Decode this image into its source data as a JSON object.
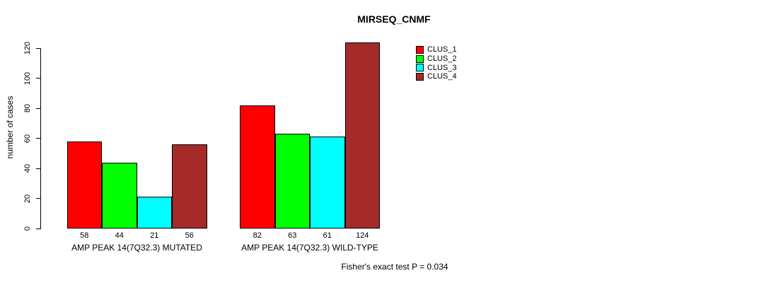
{
  "chart_data": {
    "type": "bar",
    "title": "MIRSEQ_CNMF",
    "ylabel": "number of cases",
    "xlabel": "",
    "ylim": [
      0,
      124
    ],
    "yticks": [
      0,
      20,
      40,
      60,
      80,
      100,
      120
    ],
    "grid": false,
    "legend_position": "top-right-inside",
    "categories": [
      "AMP PEAK 14(7Q32.3) MUTATED",
      "AMP PEAK 14(7Q32.3) WILD-TYPE"
    ],
    "series": [
      {
        "name": "CLUS_1",
        "color": "#ff0000",
        "values": [
          58,
          82
        ]
      },
      {
        "name": "CLUS_2",
        "color": "#00ff00",
        "values": [
          44,
          63
        ]
      },
      {
        "name": "CLUS_3",
        "color": "#00ffff",
        "values": [
          21,
          61
        ]
      },
      {
        "name": "CLUS_4",
        "color": "#a52a2a",
        "values": [
          56,
          124
        ]
      }
    ],
    "bar_labels": [
      [
        58,
        44,
        21,
        56
      ],
      [
        82,
        63,
        61,
        124
      ]
    ],
    "annotation": "Fisher's exact test P = 0.034"
  }
}
